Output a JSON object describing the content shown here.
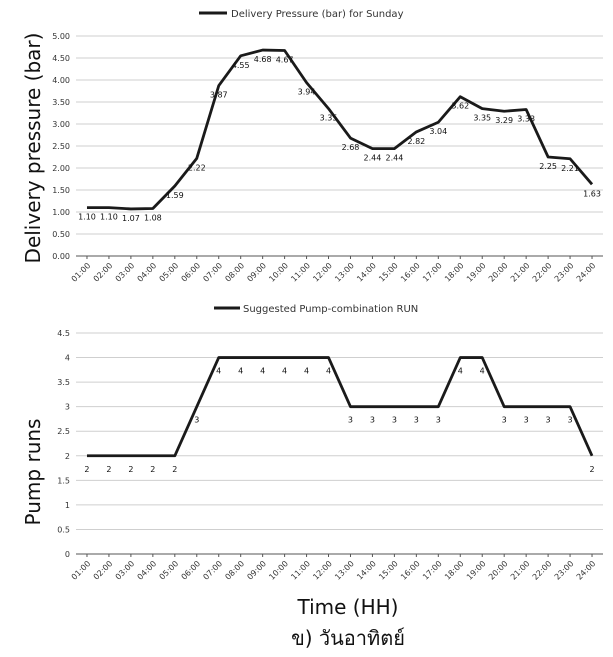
{
  "chart_data": [
    {
      "type": "line",
      "legend": "Delivery Pressure (bar) for Sunday",
      "legend_position": "top-center",
      "ylabel": "Delivery pressure (bar)",
      "xlabel": "",
      "categories": [
        "01:00",
        "02:00",
        "03:00",
        "04:00",
        "05:00",
        "06:00",
        "07:00",
        "08:00",
        "09:00",
        "10:00",
        "11:00",
        "12:00",
        "13:00",
        "14:00",
        "15:00",
        "16:00",
        "17:00",
        "18:00",
        "19:00",
        "20:00",
        "21:00",
        "22:00",
        "23:00",
        "24:00"
      ],
      "values": [
        1.1,
        1.1,
        1.07,
        1.08,
        1.59,
        2.22,
        3.87,
        4.55,
        4.68,
        4.67,
        3.94,
        3.35,
        2.68,
        2.44,
        2.44,
        2.82,
        3.04,
        3.62,
        3.35,
        3.29,
        3.33,
        2.25,
        2.21,
        1.63
      ],
      "data_labels": [
        "1.10",
        "1.10",
        "1.07",
        "1.08",
        "1.59",
        "2.22",
        "3.87",
        "4.55",
        "4.68",
        "4.67",
        "3.94",
        "3.35",
        "2.68",
        "2.44",
        "2.44",
        "2.82",
        "3.04",
        "3.62",
        "3.35",
        "3.29",
        "3.33",
        "2.25",
        "2.21",
        "1.63"
      ],
      "ylim": [
        0,
        5
      ],
      "yticks": [
        "0.00",
        "0.50",
        "1.00",
        "1.50",
        "2.00",
        "2.50",
        "3.00",
        "3.50",
        "4.00",
        "4.50",
        "5.00"
      ],
      "grid": true,
      "line_color": "#1a1a1a"
    },
    {
      "type": "line",
      "legend": "Suggested Pump-combination RUN",
      "legend_position": "top-center",
      "ylabel": "Pump runs",
      "xlabel": "Time (HH)",
      "categories": [
        "01:00",
        "02:00",
        "03:00",
        "04:00",
        "05:00",
        "06:00",
        "07:00",
        "08:00",
        "09:00",
        "10:00",
        "11:00",
        "12:00",
        "13:00",
        "14:00",
        "15:00",
        "16:00",
        "17:00",
        "18:00",
        "19:00",
        "20:00",
        "21:00",
        "22:00",
        "23:00",
        "24:00"
      ],
      "values": [
        2,
        2,
        2,
        2,
        2,
        3,
        4,
        4,
        4,
        4,
        4,
        4,
        3,
        3,
        3,
        3,
        3,
        4,
        4,
        3,
        3,
        3,
        3,
        2
      ],
      "data_labels": [
        "2",
        "2",
        "2",
        "2",
        "2",
        "3",
        "4",
        "4",
        "4",
        "4",
        "4",
        "4",
        "3",
        "3",
        "3",
        "3",
        "3",
        "4",
        "4",
        "3",
        "3",
        "3",
        "3",
        "2"
      ],
      "ylim": [
        0,
        4.5
      ],
      "yticks": [
        "0",
        "0.5",
        "1",
        "1.5",
        "2",
        "2.5",
        "3",
        "3.5",
        "4",
        "4.5"
      ],
      "grid": true,
      "line_color": "#1a1a1a"
    }
  ],
  "caption": "ข)   วันอาทิตย์"
}
